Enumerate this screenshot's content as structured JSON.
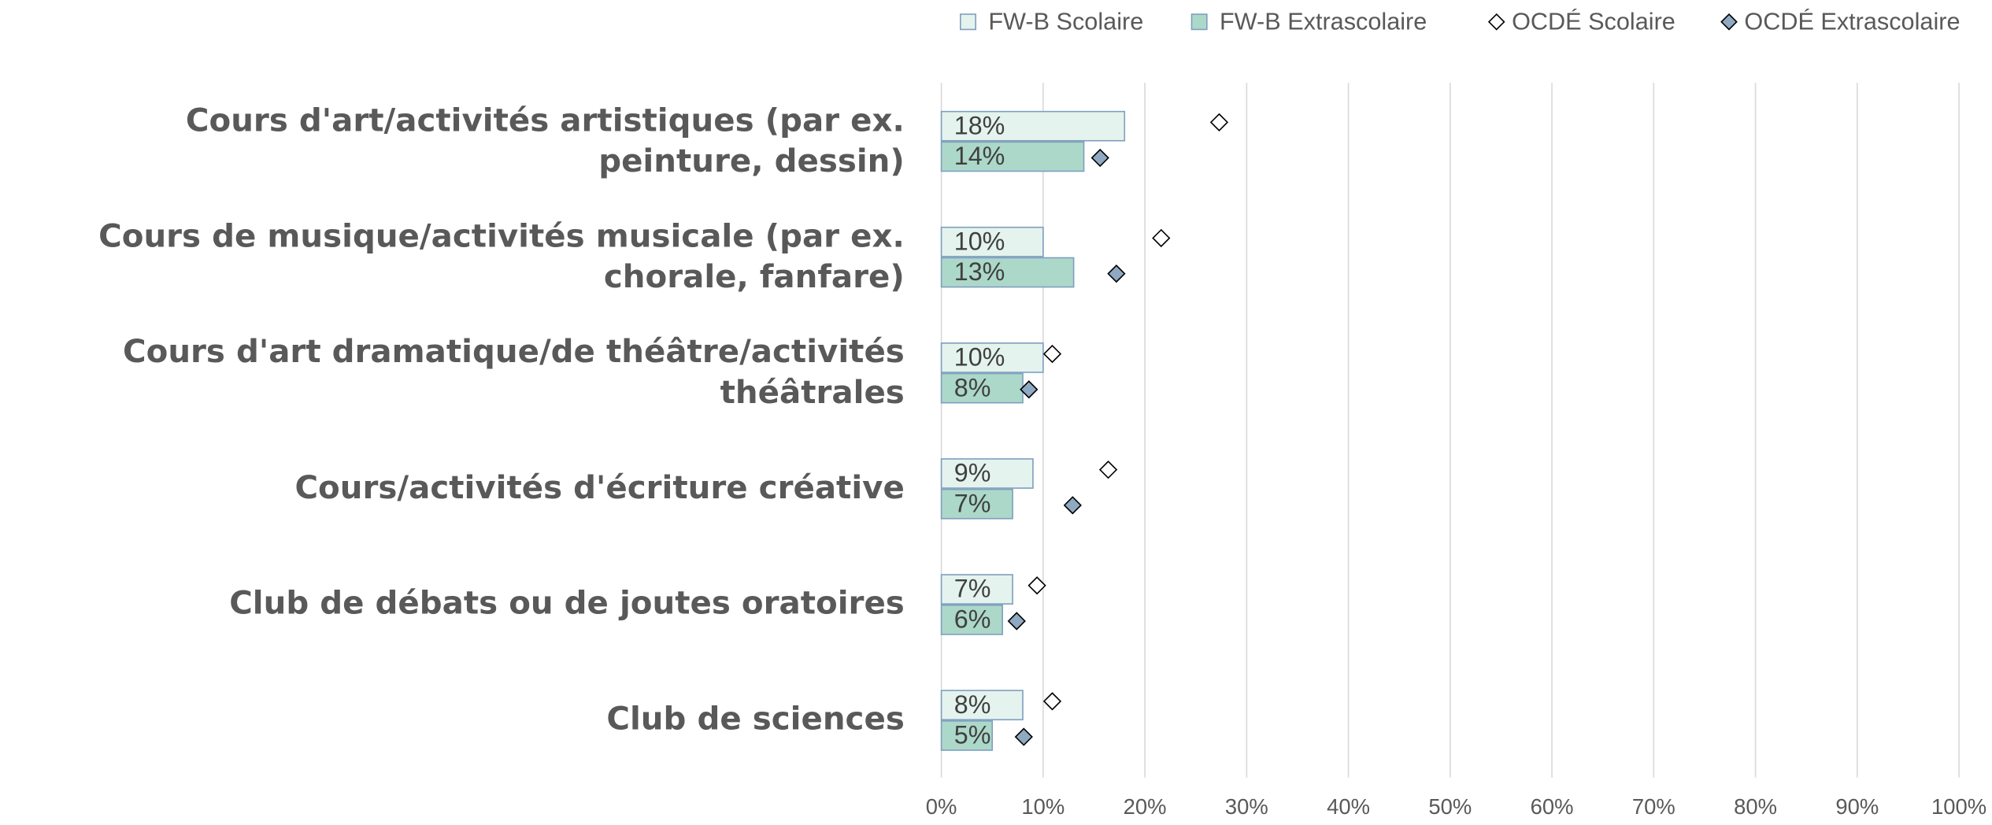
{
  "chart_data": {
    "type": "bar",
    "orientation": "horizontal",
    "categories": [
      "Cours d'art/activités artistiques (par ex. peinture, dessin)",
      "Cours de musique/activités musicale (par ex. chorale, fanfare)",
      "Cours d'art dramatique/de théâtre/activités théâtrales",
      "Cours/activités d'écriture créative",
      "Club de débats ou de joutes oratoires",
      "Club de sciences"
    ],
    "series": [
      {
        "name": "FW-B Scolaire",
        "type": "bar",
        "color": "#e4f3ee",
        "edge": "#7f9fbf",
        "values": [
          18,
          10,
          10,
          9,
          7,
          8
        ],
        "value_labels": [
          "18%",
          "10%",
          "10%",
          "9%",
          "7%",
          "8%"
        ]
      },
      {
        "name": "FW-B Extrascolaire",
        "type": "bar",
        "color": "#acd8c9",
        "edge": "#7f9fbf",
        "values": [
          14,
          13,
          8,
          7,
          6,
          5
        ],
        "value_labels": [
          "14%",
          "13%",
          "8%",
          "7%",
          "6%",
          "5%"
        ]
      },
      {
        "name": "OCDÉ Scolaire",
        "type": "scatter",
        "color": "#ffffff",
        "edge": "#000000",
        "values": [
          27.3,
          21.6,
          10.9,
          16.4,
          9.4,
          10.9
        ]
      },
      {
        "name": "OCDÉ Extrascolaire",
        "type": "scatter",
        "color": "#8ea9c1",
        "edge": "#000000",
        "values": [
          15.6,
          17.2,
          8.6,
          12.9,
          7.4,
          8.1
        ]
      }
    ],
    "xlim": [
      0,
      100
    ],
    "xticks": [
      {
        "value": 0,
        "label": "0%"
      },
      {
        "value": 10,
        "label": "10%"
      },
      {
        "value": 20,
        "label": "20%"
      },
      {
        "value": 30,
        "label": "30%"
      },
      {
        "value": 40,
        "label": "40%"
      },
      {
        "value": 50,
        "label": "50%"
      },
      {
        "value": 60,
        "label": "60%"
      },
      {
        "value": 70,
        "label": "70%"
      },
      {
        "value": 80,
        "label": "80%"
      },
      {
        "value": 90,
        "label": "90%"
      },
      {
        "value": 100,
        "label": "100%"
      }
    ],
    "grid": true,
    "legend": "top-right"
  }
}
